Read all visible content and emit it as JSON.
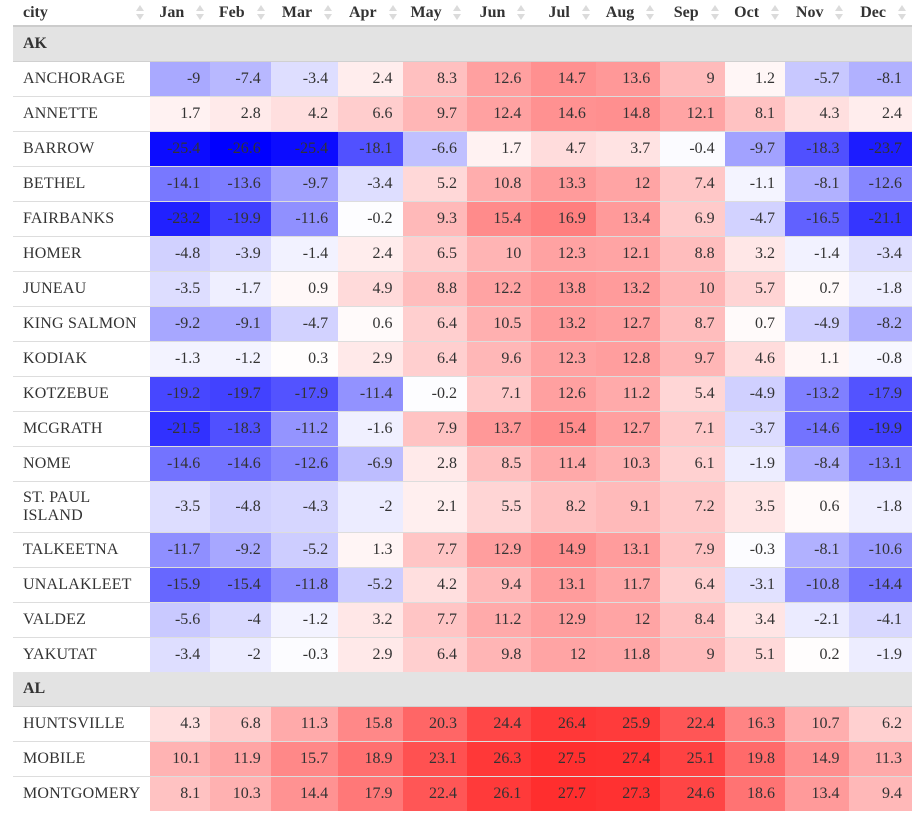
{
  "columns": [
    "city",
    "Jan",
    "Feb",
    "Mar",
    "Apr",
    "May",
    "Jun",
    "Jul",
    "Aug",
    "Sep",
    "Oct",
    "Nov",
    "Dec"
  ],
  "groups": [
    {
      "name": "AK",
      "rows": [
        {
          "city": "ANCHORAGE",
          "v": [
            -9,
            -7.4,
            -3.4,
            2.4,
            8.3,
            12.6,
            14.7,
            13.6,
            9,
            1.2,
            -5.7,
            -8.1
          ]
        },
        {
          "city": "ANNETTE",
          "v": [
            1.7,
            2.8,
            4.2,
            6.6,
            9.7,
            12.4,
            14.6,
            14.8,
            12.1,
            8.1,
            4.3,
            2.4
          ]
        },
        {
          "city": "BARROW",
          "v": [
            -25.4,
            -26.6,
            -25.4,
            -18.1,
            -6.6,
            1.7,
            4.7,
            3.7,
            -0.4,
            -9.7,
            -18.3,
            -23.7
          ]
        },
        {
          "city": "BETHEL",
          "v": [
            -14.1,
            -13.6,
            -9.7,
            -3.4,
            5.2,
            10.8,
            13.3,
            12,
            7.4,
            -1.1,
            -8.1,
            -12.6
          ]
        },
        {
          "city": "FAIRBANKS",
          "v": [
            -23.2,
            -19.9,
            -11.6,
            -0.2,
            9.3,
            15.4,
            16.9,
            13.4,
            6.9,
            -4.7,
            -16.5,
            -21.1
          ]
        },
        {
          "city": "HOMER",
          "v": [
            -4.8,
            -3.9,
            -1.4,
            2.4,
            6.5,
            10,
            12.3,
            12.1,
            8.8,
            3.2,
            -1.4,
            -3.4
          ]
        },
        {
          "city": "JUNEAU",
          "v": [
            -3.5,
            -1.7,
            0.9,
            4.9,
            8.8,
            12.2,
            13.8,
            13.2,
            10,
            5.7,
            0.7,
            -1.8
          ]
        },
        {
          "city": "KING SALMON",
          "v": [
            -9.2,
            -9.1,
            -4.7,
            0.6,
            6.4,
            10.5,
            13.2,
            12.7,
            8.7,
            0.7,
            -4.9,
            -8.2
          ]
        },
        {
          "city": "KODIAK",
          "v": [
            -1.3,
            -1.2,
            0.3,
            2.9,
            6.4,
            9.6,
            12.3,
            12.8,
            9.7,
            4.6,
            1.1,
            -0.8
          ]
        },
        {
          "city": "KOTZEBUE",
          "v": [
            -19.2,
            -19.7,
            -17.9,
            -11.4,
            -0.2,
            7.1,
            12.6,
            11.2,
            5.4,
            -4.9,
            -13.2,
            -17.9
          ]
        },
        {
          "city": "MCGRATH",
          "v": [
            -21.5,
            -18.3,
            -11.2,
            -1.6,
            7.9,
            13.7,
            15.4,
            12.7,
            7.1,
            -3.7,
            -14.6,
            -19.9
          ]
        },
        {
          "city": "NOME",
          "v": [
            -14.6,
            -14.6,
            -12.6,
            -6.9,
            2.8,
            8.5,
            11.4,
            10.3,
            6.1,
            -1.9,
            -8.4,
            -13.1
          ]
        },
        {
          "city": "ST. PAUL ISLAND",
          "v": [
            -3.5,
            -4.8,
            -4.3,
            -2,
            2.1,
            5.5,
            8.2,
            9.1,
            7.2,
            3.5,
            0.6,
            -1.8
          ]
        },
        {
          "city": "TALKEETNA",
          "v": [
            -11.7,
            -9.2,
            -5.2,
            1.3,
            7.7,
            12.9,
            14.9,
            13.1,
            7.9,
            -0.3,
            -8.1,
            -10.6
          ]
        },
        {
          "city": "UNALAKLEET",
          "v": [
            -15.9,
            -15.4,
            -11.8,
            -5.2,
            4.2,
            9.4,
            13.1,
            11.7,
            6.4,
            -3.1,
            -10.8,
            -14.4
          ]
        },
        {
          "city": "VALDEZ",
          "v": [
            -5.6,
            -4,
            -1.2,
            3.2,
            7.7,
            11.2,
            12.9,
            12,
            8.4,
            3.4,
            -2.1,
            -4.1
          ]
        },
        {
          "city": "YAKUTAT",
          "v": [
            -3.4,
            -2,
            -0.3,
            2.9,
            6.4,
            9.8,
            12,
            11.8,
            9,
            5.1,
            0.2,
            -1.9
          ]
        }
      ]
    },
    {
      "name": "AL",
      "rows": [
        {
          "city": "HUNTSVILLE",
          "v": [
            4.3,
            6.8,
            11.3,
            15.8,
            20.3,
            24.4,
            26.4,
            25.9,
            22.4,
            16.3,
            10.7,
            6.2
          ]
        },
        {
          "city": "MOBILE",
          "v": [
            10.1,
            11.9,
            15.7,
            18.9,
            23.1,
            26.3,
            27.5,
            27.4,
            25.1,
            19.8,
            14.9,
            11.3
          ]
        },
        {
          "city": "MONTGOMERY",
          "v": [
            8.1,
            10.3,
            14.4,
            17.9,
            22.4,
            26.1,
            27.7,
            27.3,
            24.6,
            18.6,
            13.4,
            9.4
          ]
        }
      ]
    }
  ],
  "colors": {
    "cold": "#0000ff",
    "warm": "#ff0000",
    "neutral": "#ffffff",
    "header_border": "#cccccc",
    "group_bg": "#e3e3e3"
  },
  "scale": {
    "min": -26.6,
    "max": 27.7
  }
}
